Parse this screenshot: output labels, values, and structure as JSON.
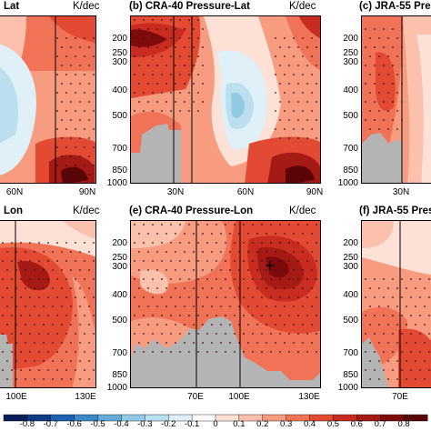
{
  "colors": {
    "levels": [
      "#0b1e5a",
      "#0f3a86",
      "#1c62b0",
      "#3a88c8",
      "#66acd8",
      "#92cae6",
      "#bcdff0",
      "#dff0f8",
      "#ffffff",
      "#fde0d6",
      "#fbc1ac",
      "#f79c80",
      "#f07257",
      "#e24a34",
      "#c82c20",
      "#a61a16",
      "#7e0a0c",
      "#5a0408"
    ],
    "terrain": "#b4b4b4",
    "frame": "#000000"
  },
  "chart_data": [
    {
      "type": "heatmap",
      "title": "Lat",
      "unit": "K/dec",
      "xticklabels": [
        "60N",
        "90N"
      ],
      "yticklabels": [
        "",
        "",
        "",
        "",
        "",
        "",
        ""
      ],
      "note": "partially visible panel (a)"
    },
    {
      "type": "heatmap",
      "title": "(b) CRA-40 Pressure-Lat",
      "unit": "K/dec",
      "xticklabels": [
        "30N",
        "60N",
        "90N"
      ],
      "yticklabels": [
        "200",
        "250",
        "300",
        "400",
        "500",
        "700",
        "850",
        "1000"
      ]
    },
    {
      "type": "heatmap",
      "title": "(c) JRA-55 Pres",
      "unit": "",
      "xticklabels": [
        "30N"
      ],
      "yticklabels": [
        "200",
        "250",
        "300",
        "400",
        "500",
        "700",
        "850",
        "1000"
      ]
    },
    {
      "type": "heatmap",
      "title": "Lon",
      "unit": "K/dec",
      "xticklabels": [
        "100E",
        "130E"
      ],
      "yticklabels": []
    },
    {
      "type": "heatmap",
      "title": "(e) CRA-40 Pressure-Lon",
      "unit": "K/dec",
      "xticklabels": [
        "70E",
        "100E",
        "130E"
      ],
      "yticklabels": [
        "200",
        "250",
        "300",
        "400",
        "500",
        "700",
        "850",
        "1000"
      ]
    },
    {
      "type": "heatmap",
      "title": "(f) JRA-55 Pres",
      "unit": "",
      "xticklabels": [
        "70E"
      ],
      "yticklabels": [
        "200",
        "250",
        "300",
        "400",
        "500",
        "700",
        "850",
        "1000"
      ]
    }
  ],
  "colorbar": {
    "ticks": [
      "-0.8",
      "-0.7",
      "-0.6",
      "-0.5",
      "-0.4",
      "-0.3",
      "-0.2",
      "-0.1",
      "0",
      "0.1",
      "0.2",
      "0.3",
      "0.4",
      "0.5",
      "0.6",
      "0.7",
      "0.8"
    ]
  }
}
